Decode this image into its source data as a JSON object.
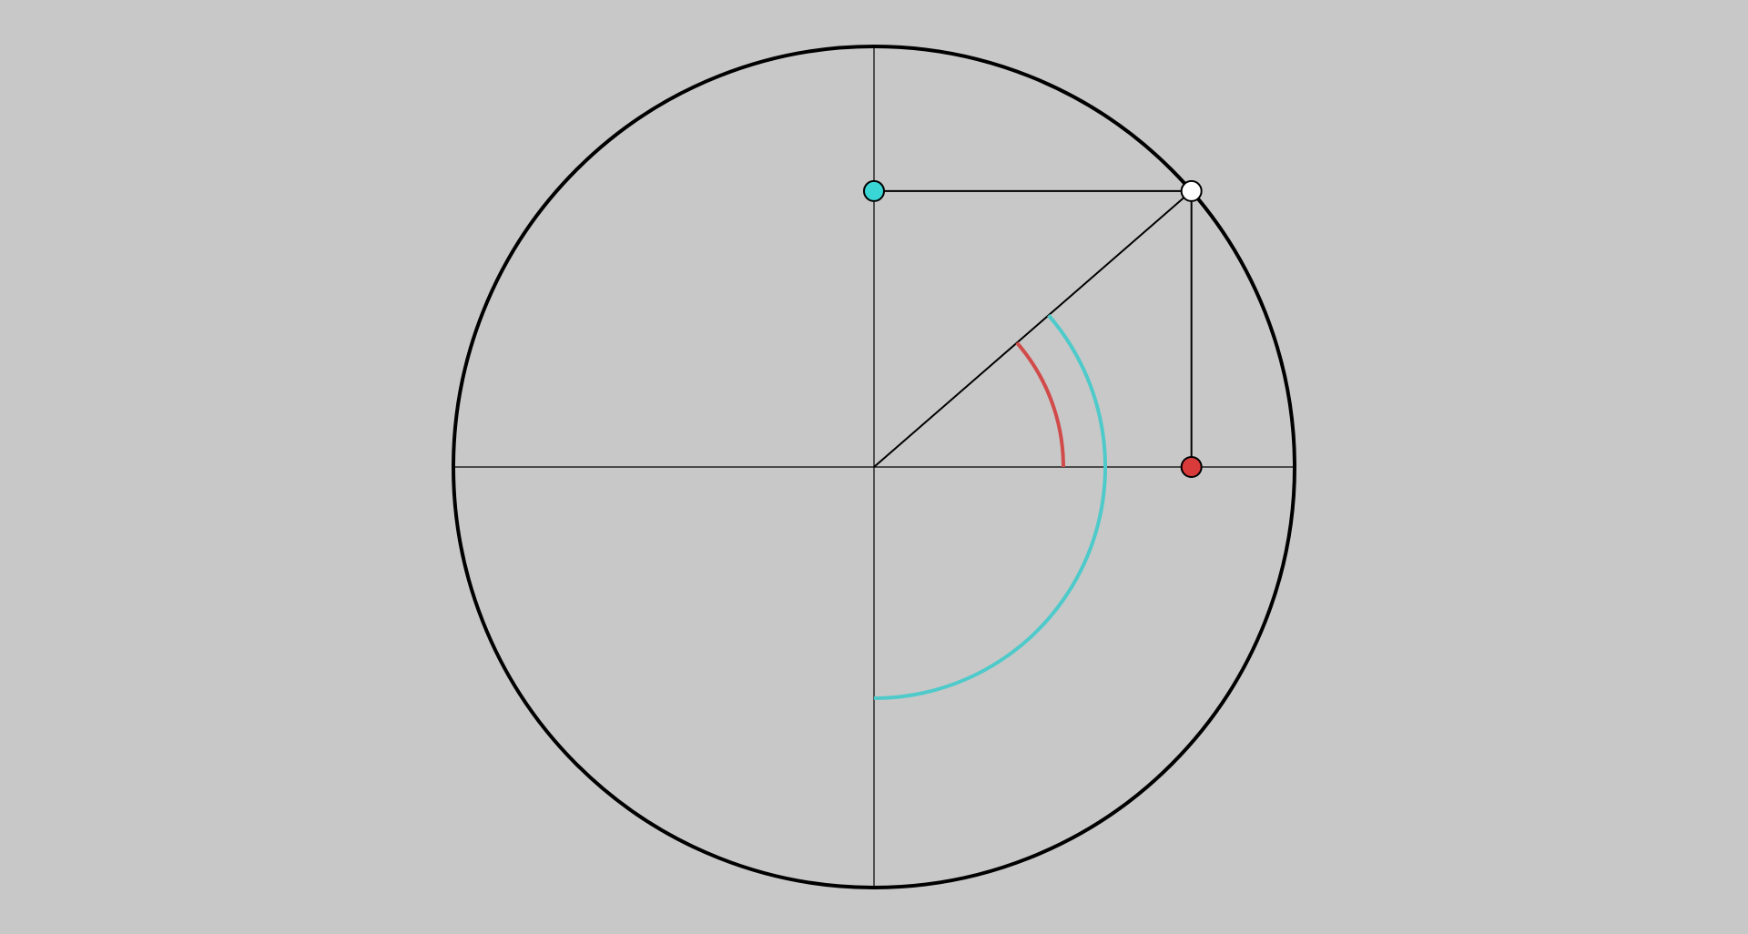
{
  "diagram": {
    "angle_degrees": 41,
    "colors": {
      "background": "#c8c8c8",
      "circle_stroke": "#000000",
      "axis_stroke": "#000000",
      "angle_arc": "#d24b4b",
      "complement_arc": "#4ecaca",
      "cos_point_fill": "#d93a3a",
      "sin_point_fill": "#3ad6d6",
      "circle_point_fill": "#ffffff"
    }
  }
}
